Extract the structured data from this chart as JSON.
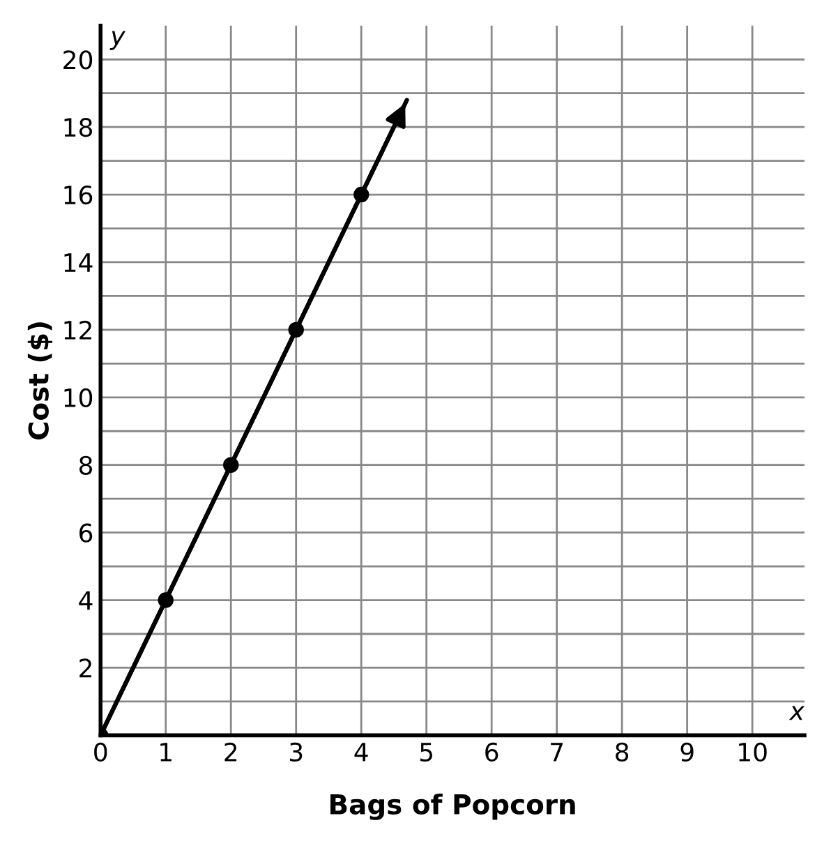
{
  "chart_data": {
    "type": "line",
    "xlabel": "Bags of Popcorn",
    "ylabel": "Cost ($)",
    "annotations": [
      "x",
      "y"
    ],
    "series": [
      {
        "color": "#000000",
        "x": [
          0,
          4.7
        ],
        "values": [
          0,
          18.8
        ],
        "marker": "none"
      },
      {
        "type": "scatter",
        "color": "#000000",
        "x": [
          0,
          1,
          2,
          3,
          4
        ],
        "values": [
          0,
          4,
          8,
          12,
          16
        ],
        "marker": "circle"
      }
    ],
    "xlim": [
      0,
      10.8
    ],
    "ylim": [
      0,
      21
    ],
    "xticks": [
      0,
      1,
      2,
      3,
      4,
      5,
      6,
      7,
      8,
      9,
      10
    ],
    "yticks": [
      {
        "value": 0,
        "label": null
      },
      {
        "value": 1,
        "label": null
      },
      2,
      {
        "value": 3,
        "label": null
      },
      4,
      {
        "value": 5,
        "label": null
      },
      6,
      {
        "value": 7,
        "label": null
      },
      8,
      {
        "value": 9,
        "label": null
      },
      10,
      {
        "value": 11,
        "label": null
      },
      12,
      {
        "value": 13,
        "label": null
      },
      14,
      {
        "value": 15,
        "label": null
      },
      16,
      {
        "value": 17,
        "label": null
      },
      18,
      {
        "value": 19,
        "label": null
      },
      20
    ],
    "grid": true,
    "legend": false
  }
}
